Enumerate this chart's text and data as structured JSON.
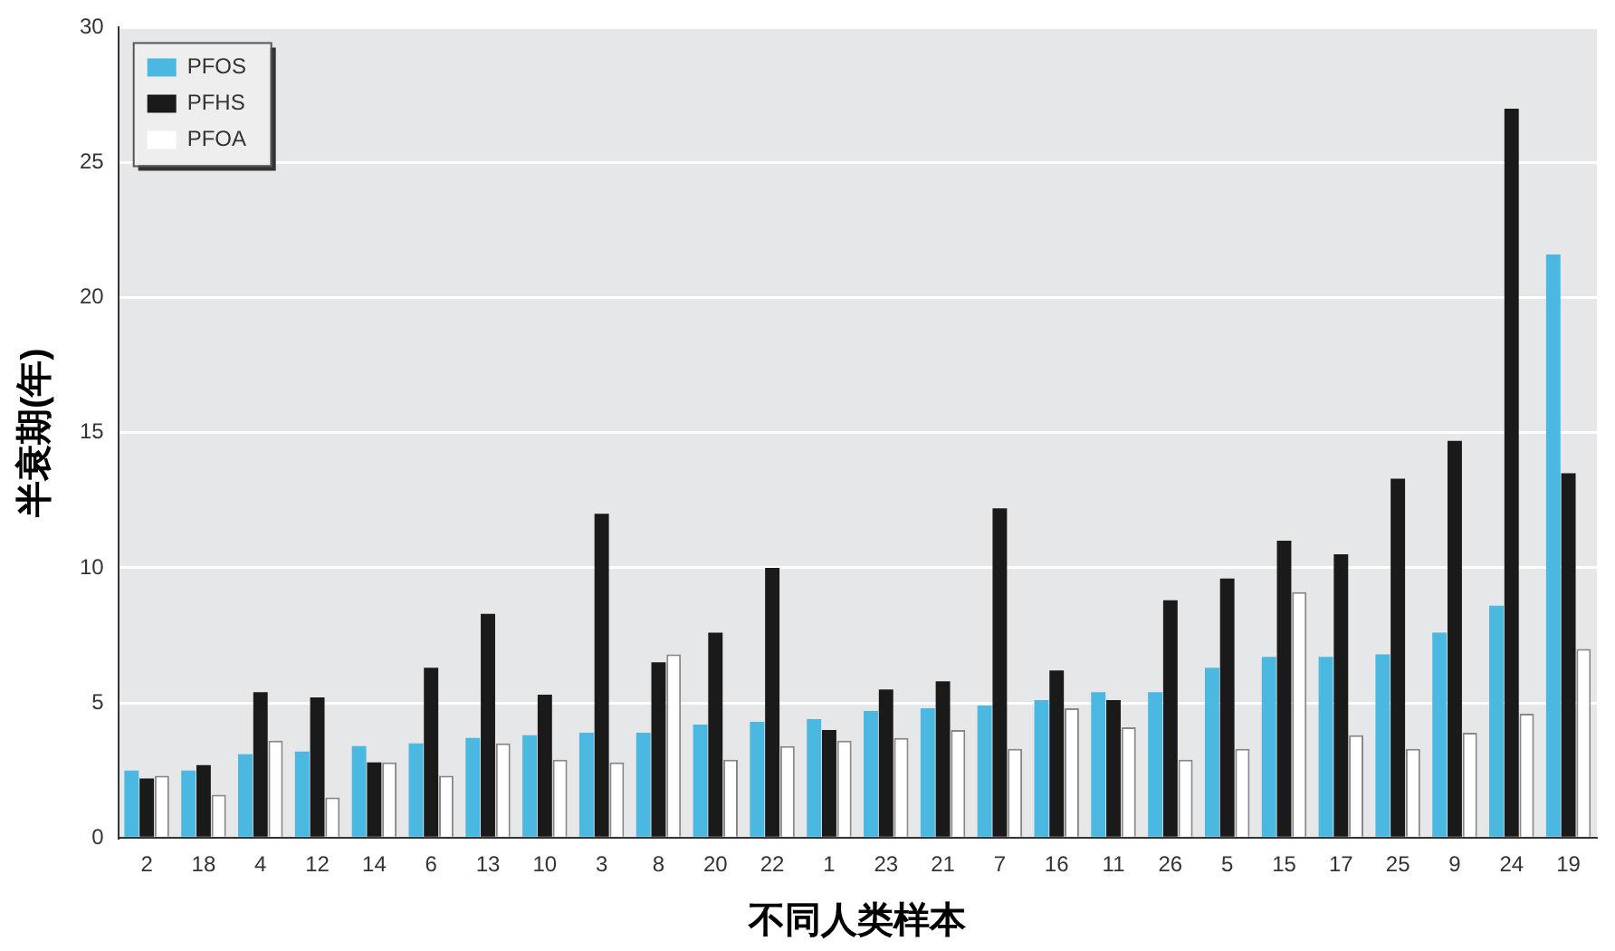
{
  "chart_data": {
    "type": "bar",
    "xlabel": "不同人类样本",
    "ylabel": "半衰期(年)",
    "categories": [
      "2",
      "18",
      "4",
      "12",
      "14",
      "6",
      "13",
      "10",
      "3",
      "8",
      "20",
      "22",
      "1",
      "23",
      "21",
      "7",
      "16",
      "11",
      "26",
      "5",
      "15",
      "17",
      "25",
      "9",
      "24",
      "19"
    ],
    "series": [
      {
        "name": "PFOS",
        "color": "#4ab8e0",
        "values": [
          2.5,
          2.5,
          3.1,
          3.2,
          3.4,
          3.5,
          3.7,
          3.8,
          3.9,
          3.9,
          4.2,
          4.3,
          4.4,
          4.7,
          4.8,
          4.9,
          5.1,
          5.4,
          5.4,
          6.3,
          6.7,
          6.7,
          6.8,
          7.6,
          8.6,
          21.6
        ]
      },
      {
        "name": "PFHS",
        "color": "#1a1a1a",
        "values": [
          2.2,
          2.7,
          5.4,
          5.2,
          2.8,
          6.3,
          8.3,
          5.3,
          12.0,
          6.5,
          7.6,
          10.0,
          4.0,
          5.5,
          5.8,
          12.2,
          6.2,
          5.1,
          8.8,
          9.6,
          11.0,
          10.5,
          13.3,
          14.7,
          27.0,
          13.5
        ]
      },
      {
        "name": "PFOA",
        "color": "#ffffff",
        "values": [
          2.3,
          1.6,
          3.6,
          1.5,
          2.8,
          2.3,
          3.5,
          2.9,
          2.8,
          6.8,
          2.9,
          3.4,
          3.6,
          3.7,
          4.0,
          3.3,
          4.8,
          4.1,
          2.9,
          3.3,
          9.1,
          3.8,
          3.3,
          3.9,
          4.6,
          7.0
        ]
      }
    ],
    "ylim": [
      0,
      30
    ],
    "yticks": [
      0,
      5,
      10,
      15,
      20,
      25,
      30
    ],
    "grid": "y",
    "legend": "top left"
  }
}
